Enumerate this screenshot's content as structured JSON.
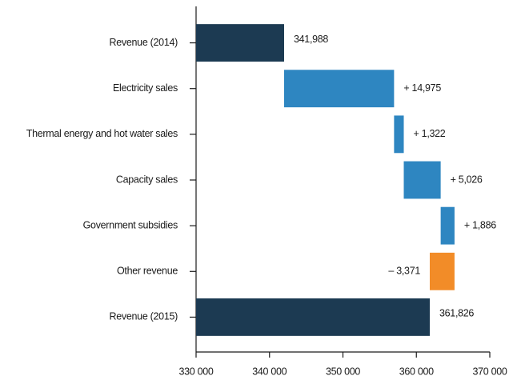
{
  "chart_data": {
    "type": "waterfall",
    "categories": [
      "Revenue (2014)",
      "Electricity sales",
      "Thermal energy and hot water sales",
      "Capacity sales",
      "Government subsidies",
      "Other revenue",
      "Revenue (2015)"
    ],
    "values": [
      341988,
      14975,
      1322,
      5026,
      1886,
      -3371,
      361826
    ],
    "value_labels": [
      "341,988",
      "+ 14,975",
      "+ 1,322",
      "+ 5,026",
      "+  1,886",
      "– 3,371",
      "361,826"
    ],
    "measure": [
      "absolute",
      "relative",
      "relative",
      "relative",
      "relative",
      "relative",
      "total"
    ],
    "colors": [
      "#1c3a52",
      "#2e86c1",
      "#2e86c1",
      "#2e86c1",
      "#2e86c1",
      "#f28c28",
      "#1c3a52"
    ],
    "xlim": [
      330000,
      370000
    ],
    "xticks": [
      {
        "value": 330000,
        "label": "330 000"
      },
      {
        "value": 340000,
        "label": "340 000"
      },
      {
        "value": 350000,
        "label": "350 000"
      },
      {
        "value": 360000,
        "label": "360 000"
      },
      {
        "value": 370000,
        "label": "370 000"
      }
    ]
  }
}
